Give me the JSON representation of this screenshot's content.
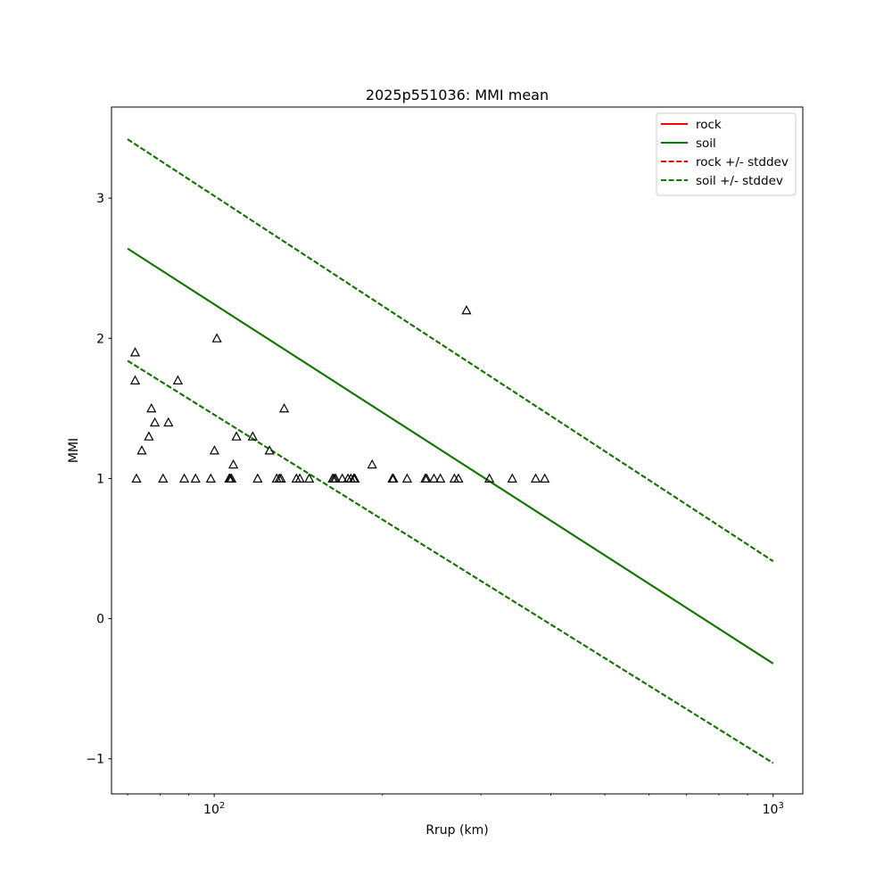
{
  "chart_data": {
    "type": "scatter",
    "title": "2025p551036: MMI mean",
    "xlabel": "Rrup (km)",
    "ylabel": "MMI",
    "xscale": "log",
    "xlim": [
      65.5,
      1130
    ],
    "ylim": [
      -1.25,
      3.65
    ],
    "yticks": [
      -1,
      0,
      1,
      2,
      3
    ],
    "xticks": [
      {
        "value": 100,
        "base": "10",
        "exp": "2"
      },
      {
        "value": 1000,
        "base": "10",
        "exp": "3"
      }
    ],
    "legend": {
      "position": "upper right",
      "entries": [
        {
          "label": "rock",
          "color": "#ff0000",
          "style": "solid"
        },
        {
          "label": "soil",
          "color": "#008000",
          "style": "solid"
        },
        {
          "label": "rock +/- stddev",
          "color": "#ff0000",
          "style": "dashed"
        },
        {
          "label": "soil +/- stddev",
          "color": "#008000",
          "style": "dashed"
        }
      ]
    },
    "lines": [
      {
        "name": "rock",
        "color": "#ff0000",
        "style": "solid",
        "x": [
          70,
          1000
        ],
        "y": [
          2.64,
          -0.32
        ]
      },
      {
        "name": "soil",
        "color": "#008000",
        "style": "solid",
        "x": [
          70,
          1000
        ],
        "y": [
          2.64,
          -0.32
        ]
      },
      {
        "name": "rock +stddev",
        "color": "#ff0000",
        "style": "dashed",
        "x": [
          70,
          1000
        ],
        "y": [
          3.42,
          0.41
        ]
      },
      {
        "name": "rock -stddev",
        "color": "#ff0000",
        "style": "dashed",
        "x": [
          70,
          1000
        ],
        "y": [
          1.84,
          -1.03
        ]
      },
      {
        "name": "soil +stddev",
        "color": "#008000",
        "style": "dashed",
        "x": [
          70,
          1000
        ],
        "y": [
          3.42,
          0.41
        ]
      },
      {
        "name": "soil -stddev",
        "color": "#008000",
        "style": "dashed",
        "x": [
          70,
          1000
        ],
        "y": [
          1.84,
          -1.03
        ]
      }
    ],
    "points": {
      "marker": "triangle-open",
      "color": "#000000",
      "x": [
        72.2,
        72.2,
        72.6,
        74.2,
        76.4,
        77.2,
        78.3,
        81.0,
        82.8,
        86.1,
        98.6,
        100.1,
        106.4,
        106.8,
        107.4,
        108.2,
        109.6,
        117.2,
        119.6,
        125.6,
        129.4,
        130.8,
        131.7,
        133.4,
        140.3,
        142.3,
        147.9,
        162.9,
        163.9,
        164.9,
        169.5,
        173.5,
        175.6,
        177.7,
        178.5,
        191.7,
        208.4,
        209.2,
        221.4,
        238.6,
        240.0,
        247.3,
        253.9,
        269.0,
        273.5,
        282.7,
        310.7,
        341.4,
        376.0,
        390.3,
        101.1,
        88.4,
        92.6
      ],
      "y": [
        1.9,
        1.7,
        1.0,
        1.2,
        1.3,
        1.5,
        1.4,
        1.0,
        1.4,
        1.7,
        1.0,
        1.2,
        1.0,
        1.0,
        1.0,
        1.1,
        1.3,
        1.3,
        1.0,
        1.2,
        1.0,
        1.0,
        1.0,
        1.5,
        1.0,
        1.0,
        1.0,
        1.0,
        1.0,
        1.0,
        1.0,
        1.0,
        1.0,
        1.0,
        1.0,
        1.1,
        1.0,
        1.0,
        1.0,
        1.0,
        1.0,
        1.0,
        1.0,
        1.0,
        1.0,
        2.2,
        1.0,
        1.0,
        1.0,
        1.0,
        2.0,
        1.0,
        1.0
      ]
    }
  }
}
